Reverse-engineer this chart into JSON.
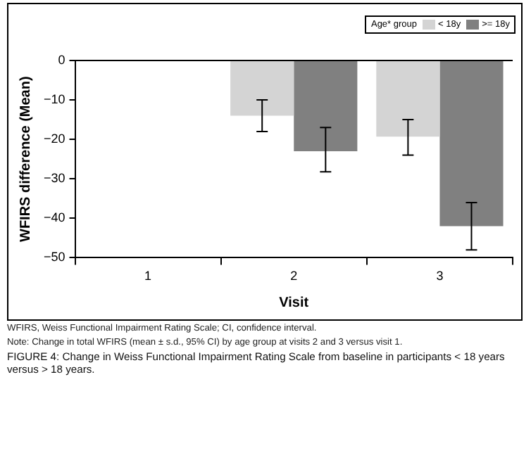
{
  "chart_data": {
    "type": "bar",
    "xlabel": "Visit",
    "ylabel": "WFIRS difference (Mean)",
    "legend_title": "Age* group",
    "legend": "top right",
    "categories": [
      "1",
      "2",
      "3"
    ],
    "series": [
      {
        "name": "< 18y",
        "color": "#d4d4d4",
        "values": [
          0,
          -14,
          -19.3
        ],
        "errors": [
          null,
          [
            -18,
            -10
          ],
          [
            -24,
            -15
          ]
        ]
      },
      {
        "name": ">= 18y",
        "color": "#808080",
        "values": [
          0,
          -23,
          -42
        ],
        "errors": [
          null,
          [
            -28.2,
            -17
          ],
          [
            -48,
            -36
          ]
        ]
      }
    ],
    "ylim": [
      -50,
      0
    ],
    "yticks": [
      -50,
      -40,
      -30,
      -20,
      -10,
      0
    ],
    "grid": false,
    "ref_lines": [
      {
        "axis": "y",
        "value": 0,
        "color": "#000000"
      }
    ],
    "annotations": [
      "WFIRS, Weiss Functional Impairment Rating Scale; CI, confidence interval.",
      "Note: Change in total WFIRS (mean ± s.d., 95% CI) by age group at visits 2 and 3 versus visit 1.",
      "FIGURE 4: Change in Weiss Functional Impairment Rating Scale from baseline in participants < 18 years versus > 18 years."
    ]
  }
}
